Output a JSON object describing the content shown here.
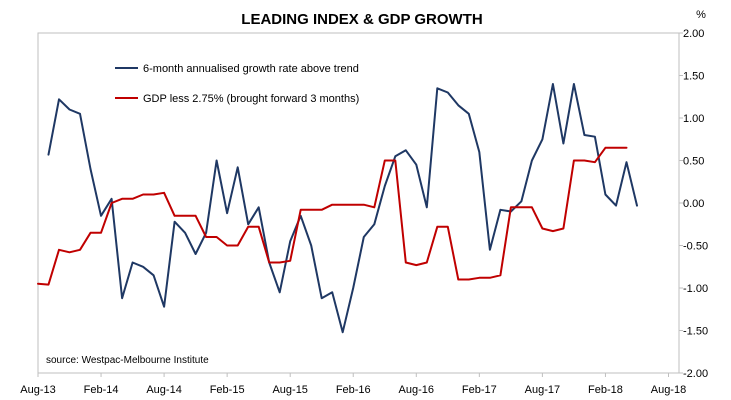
{
  "chart_data": {
    "type": "line",
    "title": "LEADING INDEX & GDP GROWTH",
    "yunit": "%",
    "ylim": [
      -2.0,
      2.0
    ],
    "yticks": [
      2.0,
      1.5,
      1.0,
      0.5,
      0.0,
      -0.5,
      -1.0,
      -1.5,
      -2.0
    ],
    "ytick_labels": [
      "2.00",
      "1.50",
      "1.00",
      "0.50",
      "0.00",
      "-0.50",
      "-1.00",
      "-1.50",
      "-2.00"
    ],
    "xlim": [
      "2013-08",
      "2018-09"
    ],
    "xticks": [
      "2013-08",
      "2014-02",
      "2014-08",
      "2015-02",
      "2015-08",
      "2016-02",
      "2016-08",
      "2017-02",
      "2017-08",
      "2018-02",
      "2018-08"
    ],
    "xtick_labels": [
      "Aug-13",
      "Feb-14",
      "Aug-14",
      "Feb-15",
      "Aug-15",
      "Feb-16",
      "Aug-16",
      "Feb-17",
      "Aug-17",
      "Feb-18",
      "Aug-18"
    ],
    "grid": false,
    "legend_position": "top-left",
    "source": "source: Westpac-Melbourne Institute",
    "series": [
      {
        "name": "6-month annualised growth rate above trend",
        "color": "#1f3864",
        "x": [
          "2013-09",
          "2013-10",
          "2013-11",
          "2013-12",
          "2014-01",
          "2014-02",
          "2014-03",
          "2014-04",
          "2014-05",
          "2014-06",
          "2014-07",
          "2014-08",
          "2014-09",
          "2014-10",
          "2014-11",
          "2014-12",
          "2015-01",
          "2015-02",
          "2015-03",
          "2015-04",
          "2015-05",
          "2015-06",
          "2015-07",
          "2015-08",
          "2015-09",
          "2015-10",
          "2015-11",
          "2015-12",
          "2016-01",
          "2016-02",
          "2016-03",
          "2016-04",
          "2016-05",
          "2016-06",
          "2016-07",
          "2016-08",
          "2016-09",
          "2016-10",
          "2016-11",
          "2016-12",
          "2017-01",
          "2017-02",
          "2017-03",
          "2017-04",
          "2017-05",
          "2017-06",
          "2017-07",
          "2017-08",
          "2017-09",
          "2017-10",
          "2017-11",
          "2017-12",
          "2018-01",
          "2018-02",
          "2018-03",
          "2018-04",
          "2018-05",
          "2018-06",
          "2018-07",
          "2018-08"
        ],
        "y": [
          0.57,
          1.22,
          1.1,
          1.05,
          0.4,
          -0.15,
          0.05,
          -1.12,
          -0.7,
          -0.75,
          -0.85,
          -1.22,
          -0.22,
          -0.35,
          -0.6,
          -0.35,
          0.5,
          -0.12,
          0.42,
          -0.25,
          -0.05,
          -0.7,
          -1.05,
          -0.45,
          -0.15,
          -0.5,
          -1.12,
          -1.05,
          -1.52,
          -1.0,
          -0.4,
          -0.25,
          0.2,
          0.55,
          0.62,
          0.45,
          -0.05,
          1.35,
          1.3,
          1.15,
          1.05,
          0.6,
          -0.55,
          -0.08,
          -0.1,
          0.02,
          0.5,
          0.75,
          1.4,
          0.7,
          1.4,
          0.8,
          0.78,
          0.1,
          -0.03,
          0.48,
          -0.03,
          null,
          null,
          null
        ]
      },
      {
        "name": "GDP less 2.75% (brought forward 3 months)",
        "color": "#c00000",
        "x": [
          "2013-08",
          "2013-09",
          "2013-10",
          "2013-11",
          "2013-12",
          "2014-01",
          "2014-02",
          "2014-03",
          "2014-04",
          "2014-05",
          "2014-06",
          "2014-07",
          "2014-08",
          "2014-09",
          "2014-10",
          "2014-11",
          "2014-12",
          "2015-01",
          "2015-02",
          "2015-03",
          "2015-04",
          "2015-05",
          "2015-06",
          "2015-07",
          "2015-08",
          "2015-09",
          "2015-10",
          "2015-11",
          "2015-12",
          "2016-01",
          "2016-02",
          "2016-03",
          "2016-04",
          "2016-05",
          "2016-06",
          "2016-07",
          "2016-08",
          "2016-09",
          "2016-10",
          "2016-11",
          "2016-12",
          "2017-01",
          "2017-02",
          "2017-03",
          "2017-04",
          "2017-05",
          "2017-06",
          "2017-07",
          "2017-08",
          "2017-09",
          "2017-10",
          "2017-11",
          "2017-12",
          "2018-01",
          "2018-02",
          "2018-03",
          "2018-04",
          "2018-05",
          "2018-06",
          "2018-07",
          "2018-08"
        ],
        "y": [
          -0.95,
          -0.96,
          -0.55,
          -0.58,
          -0.55,
          -0.35,
          -0.35,
          0.0,
          0.05,
          0.05,
          0.1,
          0.1,
          0.12,
          -0.15,
          -0.15,
          -0.15,
          -0.4,
          -0.4,
          -0.5,
          -0.5,
          -0.28,
          -0.28,
          -0.7,
          -0.7,
          -0.68,
          -0.08,
          -0.08,
          -0.08,
          -0.02,
          -0.02,
          -0.02,
          -0.02,
          -0.05,
          0.5,
          0.5,
          -0.7,
          -0.73,
          -0.7,
          -0.28,
          -0.28,
          -0.9,
          -0.9,
          -0.88,
          -0.88,
          -0.85,
          -0.05,
          -0.05,
          -0.05,
          -0.3,
          -0.33,
          -0.3,
          0.5,
          0.5,
          0.48,
          0.65,
          0.65,
          0.65,
          null,
          null,
          null,
          null
        ]
      }
    ]
  }
}
